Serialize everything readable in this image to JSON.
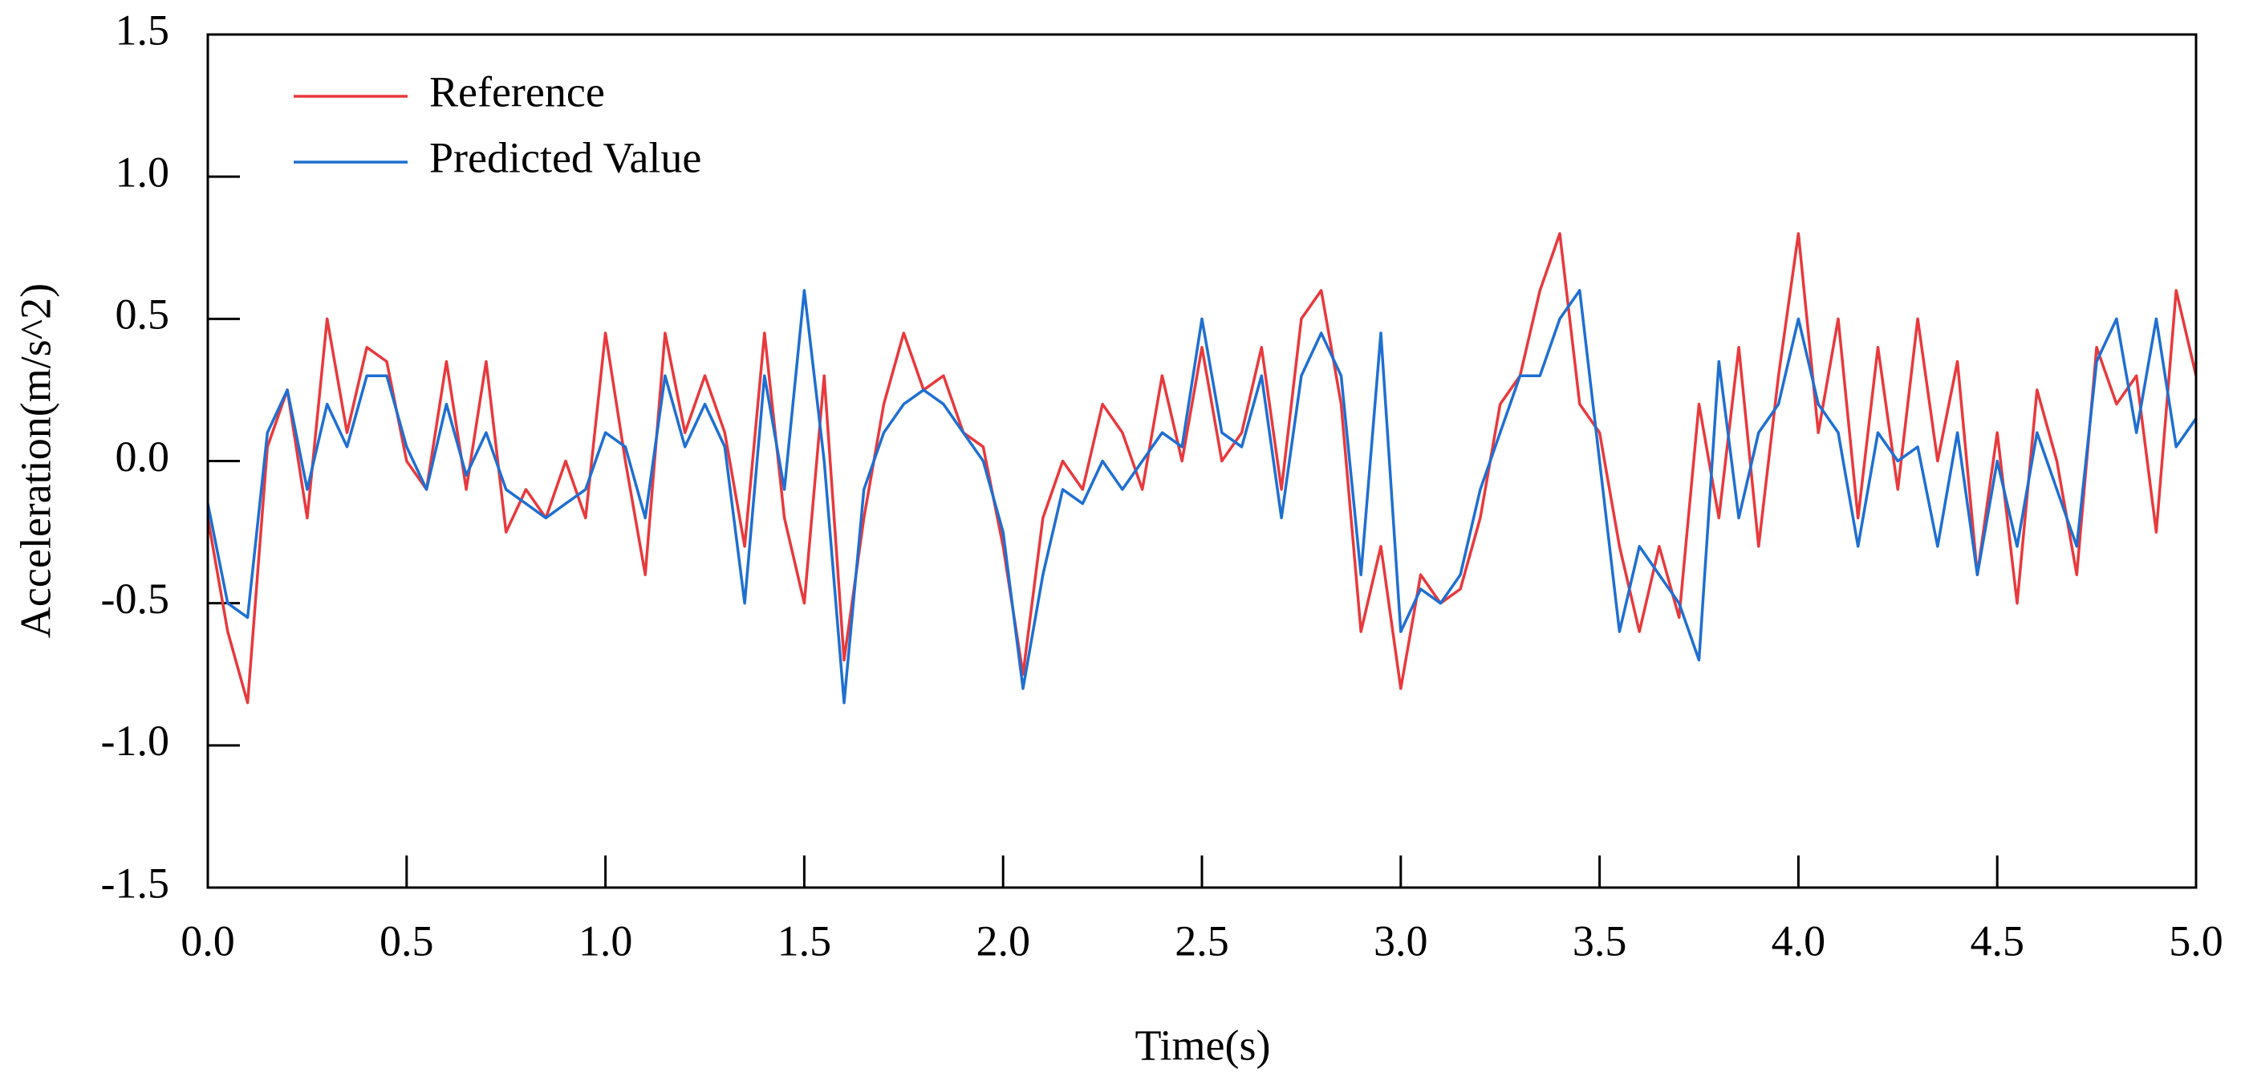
{
  "chart_data": {
    "type": "line",
    "x_label": "Time(s)",
    "y_label": "Acceleration(m/s^2)",
    "x": [
      0,
      0.05,
      0.1,
      0.15,
      0.2,
      0.25,
      0.3,
      0.35,
      0.4,
      0.45,
      0.5,
      0.55,
      0.6,
      0.65,
      0.7,
      0.75,
      0.8,
      0.85,
      0.9,
      0.95,
      1,
      1.05,
      1.1,
      1.15,
      1.2,
      1.25,
      1.3,
      1.35,
      1.4,
      1.45,
      1.5,
      1.55,
      1.6,
      1.65,
      1.7,
      1.75,
      1.8,
      1.85,
      1.9,
      1.95,
      2,
      2.05,
      2.1,
      2.15,
      2.2,
      2.25,
      2.3,
      2.35,
      2.4,
      2.45,
      2.5,
      2.55,
      2.6,
      2.65,
      2.7,
      2.75,
      2.8,
      2.85,
      2.9,
      2.95,
      3,
      3.05,
      3.1,
      3.15,
      3.2,
      3.25,
      3.3,
      3.35,
      3.4,
      3.45,
      3.5,
      3.55,
      3.6,
      3.65,
      3.7,
      3.75,
      3.8,
      3.85,
      3.9,
      3.95,
      4,
      4.05,
      4.1,
      4.15,
      4.2,
      4.25,
      4.3,
      4.35,
      4.4,
      4.45,
      4.5,
      4.55,
      4.6,
      4.65,
      4.7,
      4.75,
      4.8,
      4.85,
      4.9,
      4.95,
      5
    ],
    "series": [
      {
        "name": "Reference",
        "color": "#e8393d",
        "values": [
          -0.2,
          -0.6,
          -0.85,
          0.05,
          0.25,
          -0.2,
          0.5,
          0.1,
          0.4,
          0.35,
          0.0,
          -0.1,
          0.35,
          -0.1,
          0.35,
          -0.25,
          -0.1,
          -0.2,
          0.0,
          -0.2,
          0.45,
          0.0,
          -0.4,
          0.45,
          0.1,
          0.3,
          0.1,
          -0.3,
          0.45,
          -0.2,
          -0.5,
          0.3,
          -0.7,
          -0.2,
          0.2,
          0.45,
          0.25,
          0.3,
          0.1,
          0.05,
          -0.3,
          -0.75,
          -0.2,
          0.0,
          -0.1,
          0.2,
          0.1,
          -0.1,
          0.3,
          0.0,
          0.4,
          0.0,
          0.1,
          0.4,
          -0.1,
          0.5,
          0.6,
          0.2,
          -0.6,
          -0.3,
          -0.8,
          -0.4,
          -0.5,
          -0.45,
          -0.2,
          0.2,
          0.3,
          0.6,
          0.8,
          0.2,
          0.1,
          -0.3,
          -0.6,
          -0.3,
          -0.55,
          0.2,
          -0.2,
          0.4,
          -0.3,
          0.3,
          0.8,
          0.1,
          0.5,
          -0.2,
          0.4,
          -0.1,
          0.5,
          0.0,
          0.35,
          -0.4,
          0.1,
          -0.5,
          0.25,
          0.0,
          -0.4,
          0.4,
          0.2,
          0.3,
          -0.25,
          0.6,
          0.3
        ]
      },
      {
        "name": "Predicted Value",
        "color": "#1f6fd1",
        "values": [
          -0.15,
          -0.5,
          -0.55,
          0.1,
          0.25,
          -0.1,
          0.2,
          0.05,
          0.3,
          0.3,
          0.05,
          -0.1,
          0.2,
          -0.05,
          0.1,
          -0.1,
          -0.15,
          -0.2,
          -0.15,
          -0.1,
          0.1,
          0.05,
          -0.2,
          0.3,
          0.05,
          0.2,
          0.05,
          -0.5,
          0.3,
          -0.1,
          0.6,
          0.0,
          -0.85,
          -0.1,
          0.1,
          0.2,
          0.25,
          0.2,
          0.1,
          0.0,
          -0.25,
          -0.8,
          -0.4,
          -0.1,
          -0.15,
          0.0,
          -0.1,
          0.0,
          0.1,
          0.05,
          0.5,
          0.1,
          0.05,
          0.3,
          -0.2,
          0.3,
          0.45,
          0.3,
          -0.4,
          0.45,
          -0.6,
          -0.45,
          -0.5,
          -0.4,
          -0.1,
          0.1,
          0.3,
          0.3,
          0.5,
          0.6,
          0.0,
          -0.6,
          -0.3,
          -0.4,
          -0.5,
          -0.7,
          0.35,
          -0.2,
          0.1,
          0.2,
          0.5,
          0.2,
          0.1,
          -0.3,
          0.1,
          0.0,
          0.05,
          -0.3,
          0.1,
          -0.4,
          0.0,
          -0.3,
          0.1,
          -0.1,
          -0.3,
          0.35,
          0.5,
          0.1,
          0.5,
          0.05,
          0.15
        ]
      }
    ],
    "xlim": [
      0,
      5
    ],
    "xticks": [
      {
        "value": 0,
        "label": "0.0"
      },
      0.5,
      {
        "value": 1,
        "label": "1.0"
      },
      1.5,
      {
        "value": 2,
        "label": "2.0"
      },
      2.5,
      {
        "value": 3,
        "label": "3.0"
      },
      3.5,
      {
        "value": 4,
        "label": "4.0"
      },
      4.5,
      {
        "value": 5,
        "label": "5.0"
      }
    ],
    "ylim": [
      -1.5,
      1.5
    ],
    "yticks": [
      -1.5,
      {
        "value": -1,
        "label": "-1.0"
      },
      -0.5,
      {
        "value": 0,
        "label": "0.0"
      },
      0.5,
      {
        "value": 1,
        "label": "1.0"
      },
      1.5
    ],
    "legend": "upper left",
    "grid": false
  }
}
